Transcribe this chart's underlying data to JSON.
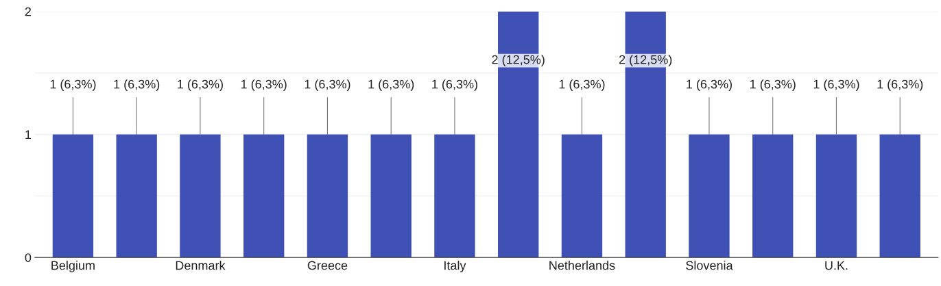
{
  "chart_data": {
    "type": "bar",
    "categories": [
      "Belgium",
      null,
      "Denmark",
      null,
      "Greece",
      null,
      "Italy",
      null,
      "Netherlands",
      null,
      "Slovenia",
      null,
      "U.K.",
      null
    ],
    "values": [
      1,
      1,
      1,
      1,
      1,
      1,
      1,
      2,
      1,
      2,
      1,
      1,
      1,
      1
    ],
    "value_labels": [
      "1 (6,3%)",
      "1 (6,3%)",
      "1 (6,3%)",
      "1 (6,3%)",
      "1 (6,3%)",
      "1 (6,3%)",
      "1 (6,3%)",
      "2 (12,5%)",
      "1 (6,3%)",
      "2 (12,5%)",
      "1 (6,3%)",
      "1 (6,3%)",
      "1 (6,3%)",
      "1 (6,3%)"
    ],
    "color": "#3f51b5",
    "ylim": [
      0,
      2
    ],
    "yticks": [
      0,
      {
        "value": 0.5,
        "label": null
      },
      1,
      {
        "value": 1.5,
        "label": null
      },
      2
    ],
    "grid": "y",
    "legend": false
  }
}
